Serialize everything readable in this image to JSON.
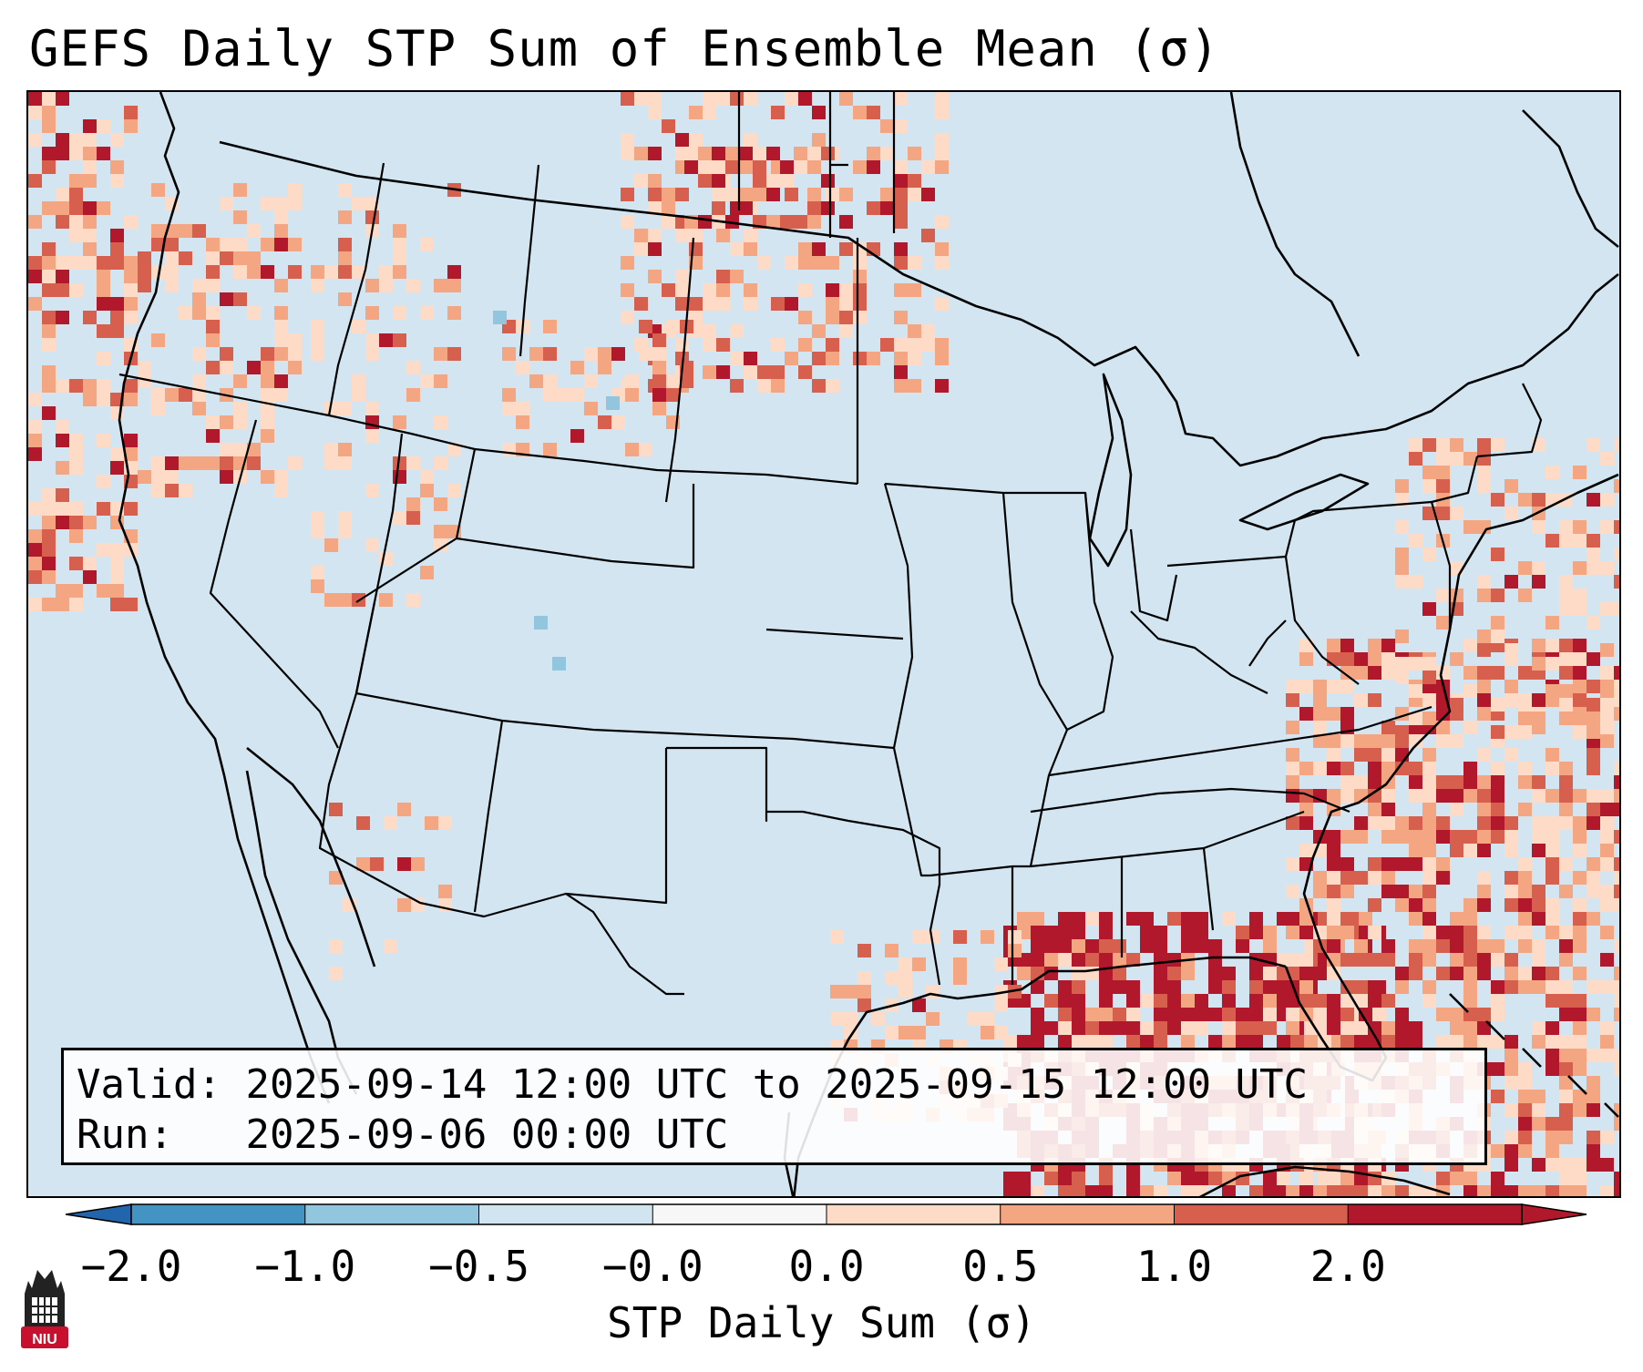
{
  "title": "GEFS Daily STP Sum of Ensemble Mean (σ)",
  "info": {
    "valid_label": "Valid:",
    "valid_value": "2025-09-14 12:00 UTC to 2025-09-15 12:00 UTC",
    "run_label": "Run:",
    "run_value": "2025-09-06 00:00 UTC"
  },
  "colorbar": {
    "label": "STP Daily Sum (σ)",
    "ticks": [
      "−2.0",
      "−1.0",
      "−0.5",
      "−0.0",
      "0.0",
      "0.5",
      "1.0",
      "2.0"
    ],
    "colors": [
      "#4393c3",
      "#92c5de",
      "#d1e5f0",
      "#f7f7f7",
      "#fddbc7",
      "#f4a582",
      "#d6604d",
      "#b2182b"
    ],
    "under_color": "#2166ac",
    "over_color": "#b2182b"
  },
  "map": {
    "background_color": "#d2e5f0",
    "high_regions": [
      "Pacific Northwest",
      "Northern Plains",
      "Florida and Gulf of Mexico",
      "Western Atlantic"
    ]
  },
  "logo": {
    "text": "NIU",
    "color": "#c8102e"
  }
}
